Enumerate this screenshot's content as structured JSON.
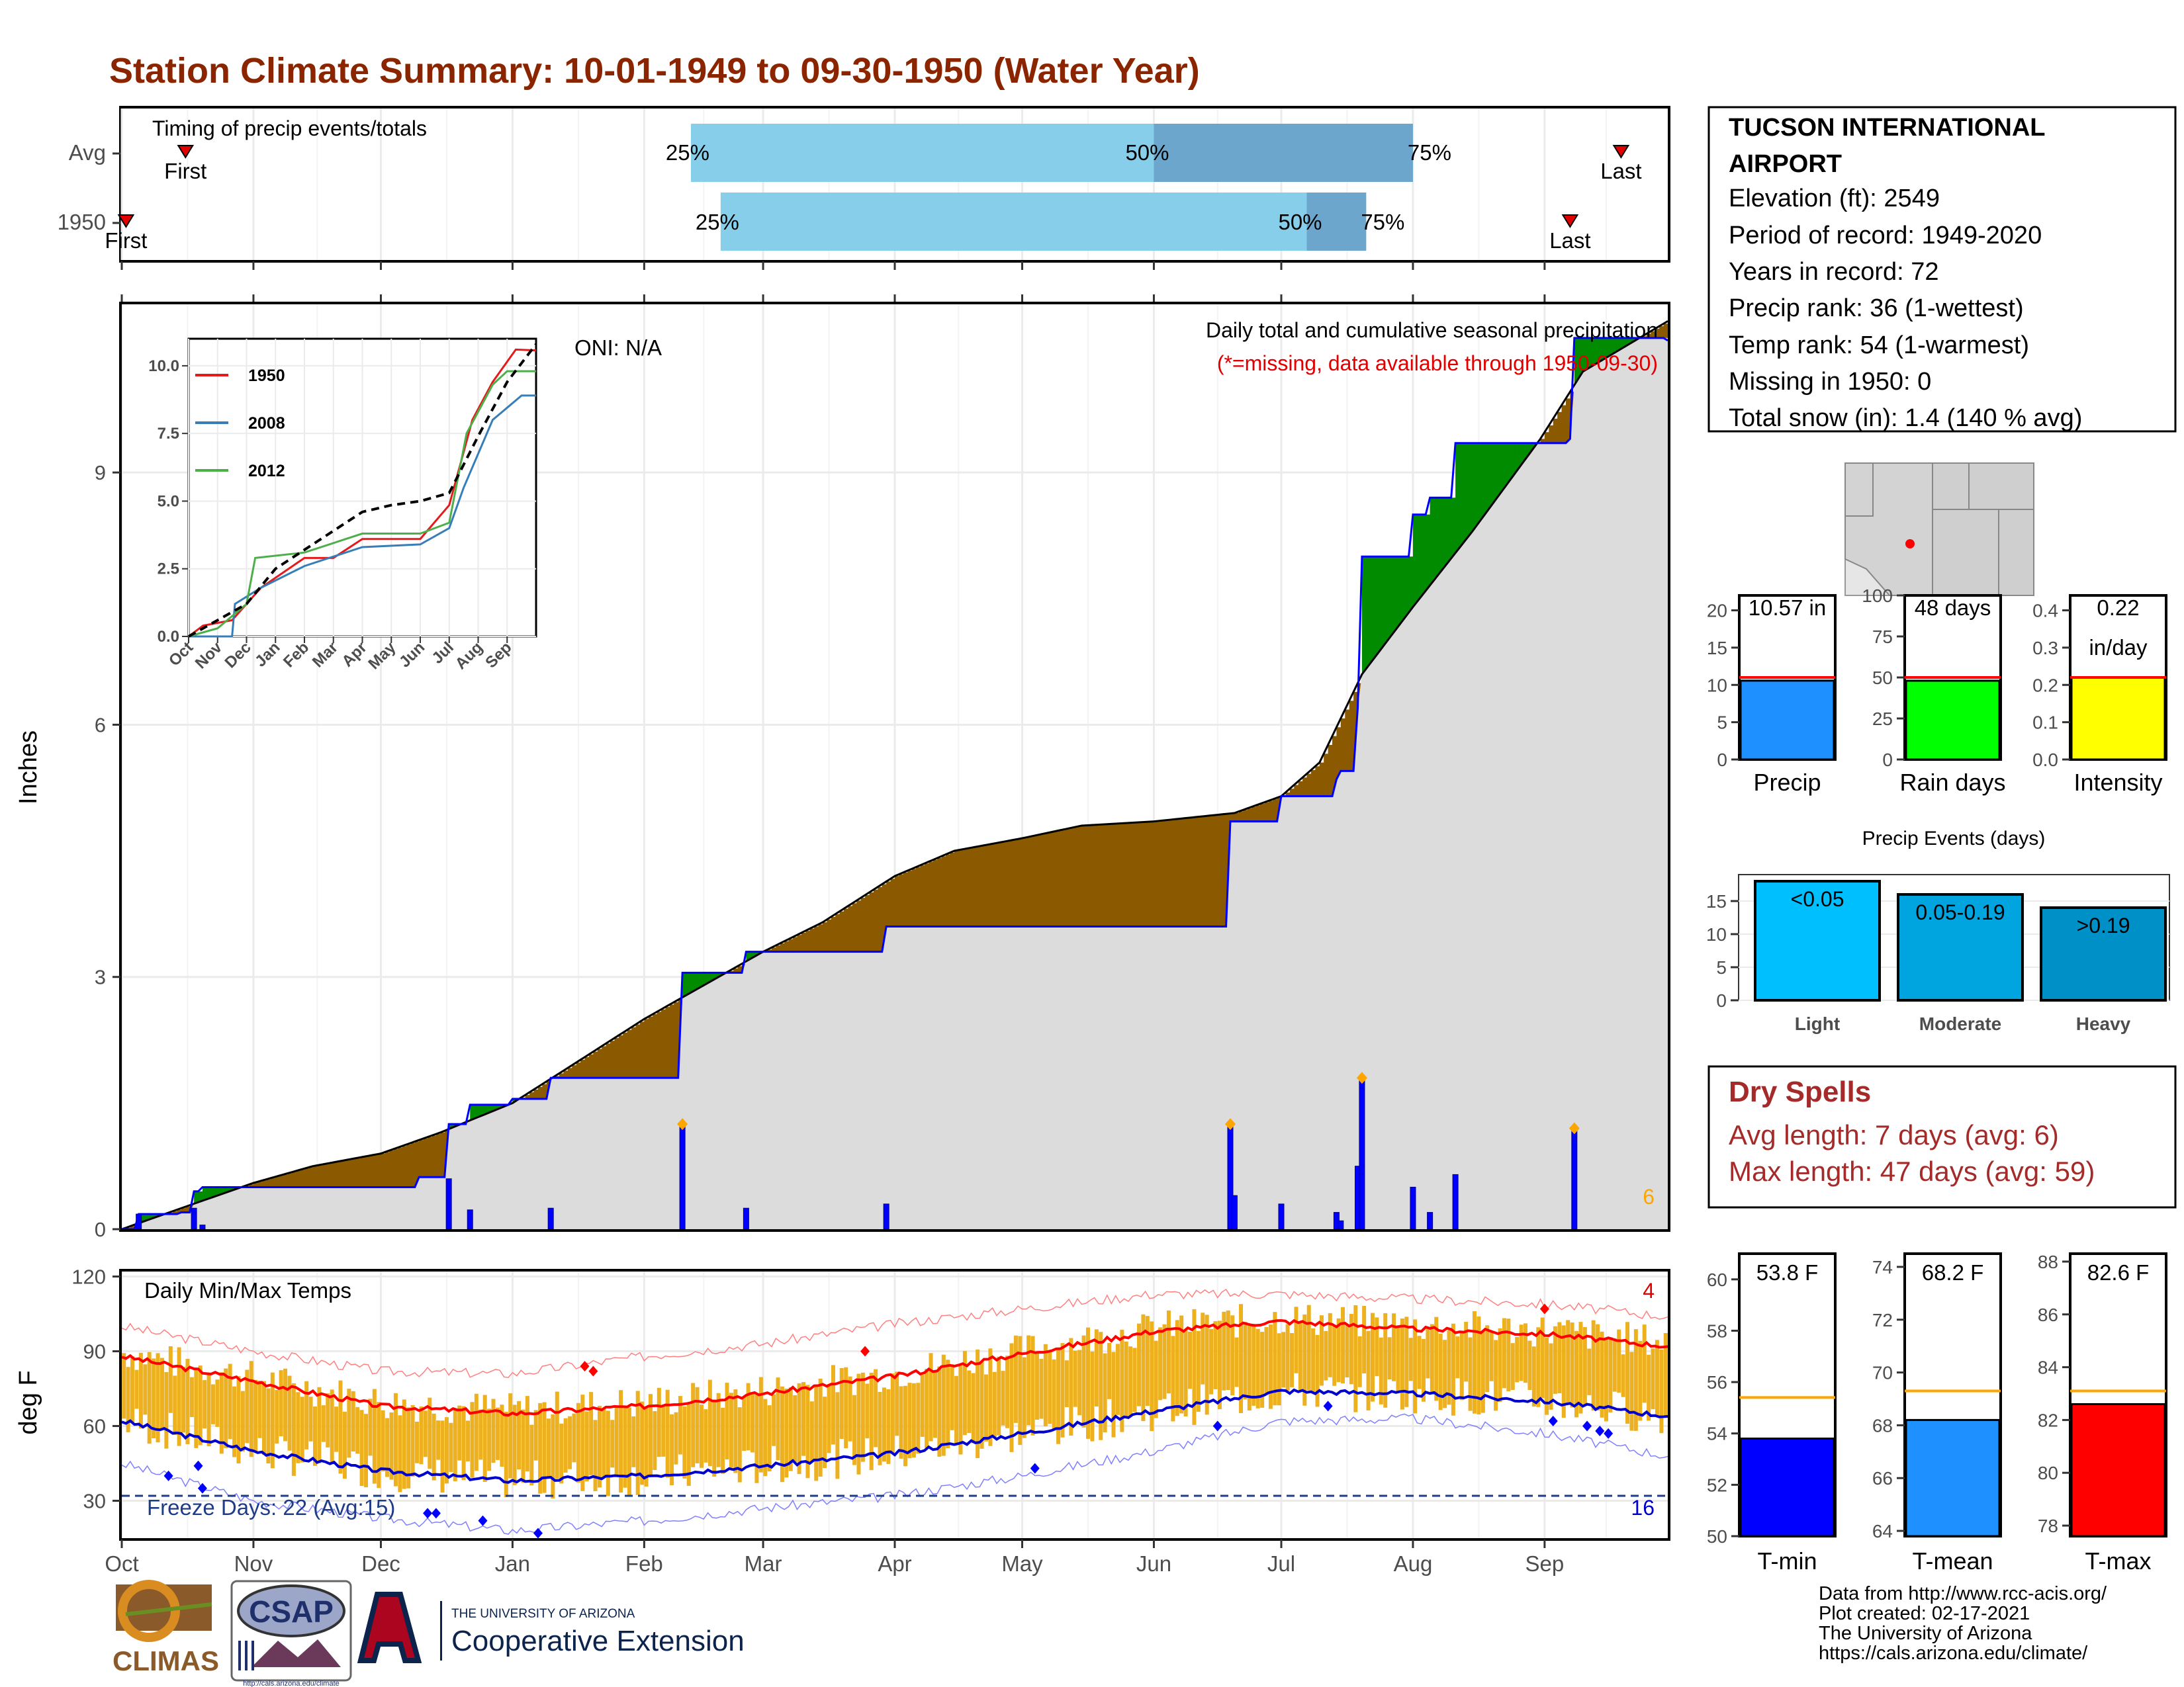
{
  "title": "Station Climate Summary: 10-01-1949 to 09-30-1950 (Water Year)",
  "colors": {
    "title": "#8B2500",
    "accumulated_surplus": "#8B5A00",
    "deficit_green": "#008B00",
    "normal_fill": "#DCDCDC",
    "precip_bars": "#0000FF",
    "tmax_line": "#FF0000",
    "tmin_line": "#0000CD",
    "temp_range_fill": "#EDB120",
    "timing_light": "#87CEEB",
    "timing_dark": "#6CA6CD"
  },
  "timing": {
    "label": "Timing of precip events/totals",
    "rows": [
      {
        "name": "Avg",
        "first_label": "First",
        "last_label": "Last",
        "first_date": "1949-10-16",
        "last_date": "1950-09-19",
        "p25_label": "25%",
        "p50_label": "50%",
        "p75_label": "75%",
        "p25_date": "1950-02-12",
        "p50_date": "1950-06-01",
        "p75_date": "1950-08-01"
      },
      {
        "name": "1950",
        "first_label": "First",
        "last_label": "Last",
        "first_date": "1949-10-02",
        "last_date": "1950-09-07",
        "p25_label": "25%",
        "p50_label": "50%",
        "p75_label": "75%",
        "p25_date": "1950-02-19",
        "p50_date": "1950-07-07",
        "p75_date": "1950-07-21"
      }
    ]
  },
  "precip": {
    "ylabel": "Inches",
    "yticks": [
      "0",
      "3",
      "6",
      "9"
    ],
    "ylim": [
      0,
      11.0
    ],
    "annotation_title": "Daily total and cumulative seasonal precipitation",
    "annotation_missing": "(*=missing, data available through 1950-09-30)",
    "oni": "ONI: N/A",
    "corner_count": "6",
    "chart_data": {
      "type": "area",
      "normal_cumulative": [
        [
          "1949-10-01",
          0.0
        ],
        [
          "1949-10-15",
          0.25
        ],
        [
          "1949-11-01",
          0.55
        ],
        [
          "1949-11-15",
          0.75
        ],
        [
          "1949-12-01",
          0.9
        ],
        [
          "1949-12-15",
          1.15
        ],
        [
          "1950-01-01",
          1.5
        ],
        [
          "1950-01-15",
          1.95
        ],
        [
          "1950-02-01",
          2.5
        ],
        [
          "1950-02-15",
          2.9
        ],
        [
          "1950-03-01",
          3.3
        ],
        [
          "1950-03-15",
          3.65
        ],
        [
          "1950-04-01",
          4.2
        ],
        [
          "1950-04-15",
          4.5
        ],
        [
          "1950-05-01",
          4.65
        ],
        [
          "1950-05-15",
          4.8
        ],
        [
          "1950-06-01",
          4.85
        ],
        [
          "1950-06-20",
          4.95
        ],
        [
          "1950-07-01",
          5.15
        ],
        [
          "1950-07-10",
          5.55
        ],
        [
          "1950-07-20",
          6.6
        ],
        [
          "1950-08-01",
          7.4
        ],
        [
          "1950-08-15",
          8.3
        ],
        [
          "1950-08-31",
          9.4
        ],
        [
          "1950-09-10",
          10.2
        ],
        [
          "1950-09-30",
          10.8
        ]
      ],
      "observed_cumulative": [
        [
          "1949-10-01",
          0.0
        ],
        [
          "1949-10-05",
          0.18
        ],
        [
          "1949-10-15",
          0.2
        ],
        [
          "1949-10-18",
          0.45
        ],
        [
          "1949-10-20",
          0.5
        ],
        [
          "1949-12-10",
          0.62
        ],
        [
          "1949-12-17",
          1.25
        ],
        [
          "1949-12-22",
          1.48
        ],
        [
          "1950-01-01",
          1.55
        ],
        [
          "1950-01-10",
          1.8
        ],
        [
          "1950-02-09",
          1.8
        ],
        [
          "1950-02-10",
          3.05
        ],
        [
          "1950-02-25",
          3.3
        ],
        [
          "1950-03-05",
          3.3
        ],
        [
          "1950-03-30",
          3.6
        ],
        [
          "1950-06-18",
          3.6
        ],
        [
          "1950-06-19",
          4.85
        ],
        [
          "1950-06-30",
          4.85
        ],
        [
          "1950-07-01",
          5.15
        ],
        [
          "1950-07-14",
          5.35
        ],
        [
          "1950-07-15",
          5.45
        ],
        [
          "1950-07-19",
          6.2
        ],
        [
          "1950-07-20",
          8.0
        ],
        [
          "1950-07-31",
          8.0
        ],
        [
          "1950-08-01",
          8.5
        ],
        [
          "1950-08-05",
          8.7
        ],
        [
          "1950-08-11",
          9.35
        ],
        [
          "1950-08-31",
          9.35
        ],
        [
          "1950-09-07",
          9.4
        ],
        [
          "1950-09-08",
          10.6
        ],
        [
          "1950-09-20",
          10.6
        ],
        [
          "1950-09-30",
          10.57
        ]
      ],
      "daily_bars": [
        [
          "1949-10-05",
          0.18
        ],
        [
          "1949-10-18",
          0.25
        ],
        [
          "1949-10-20",
          0.05
        ],
        [
          "1949-12-17",
          0.6
        ],
        [
          "1949-12-22",
          0.23
        ],
        [
          "1950-01-10",
          0.25
        ],
        [
          "1950-02-10",
          1.25
        ],
        [
          "1950-02-25",
          0.25
        ],
        [
          "1950-03-30",
          0.3
        ],
        [
          "1950-06-19",
          1.25
        ],
        [
          "1950-06-20",
          0.4
        ],
        [
          "1950-07-01",
          0.3
        ],
        [
          "1950-07-14",
          0.2
        ],
        [
          "1950-07-15",
          0.1
        ],
        [
          "1950-07-19",
          0.75
        ],
        [
          "1950-07-20",
          1.8
        ],
        [
          "1950-08-01",
          0.5
        ],
        [
          "1950-08-05",
          0.2
        ],
        [
          "1950-08-11",
          0.65
        ],
        [
          "1950-09-08",
          1.2
        ]
      ]
    }
  },
  "inset": {
    "ytick_labels": [
      "0.0",
      "2.5",
      "5.0",
      "7.5",
      "10.0"
    ],
    "xtick_labels": [
      "Oct",
      "Nov",
      "Dec",
      "Jan",
      "Feb",
      "Mar",
      "Apr",
      "May",
      "Jun",
      "Jul",
      "Aug",
      "Sep"
    ],
    "chart_data": {
      "type": "line",
      "x_months": [
        "Oct",
        "Nov",
        "Dec",
        "Jan",
        "Feb",
        "Mar",
        "Apr",
        "May",
        "Jun",
        "Jul",
        "Aug",
        "Sep"
      ],
      "series": [
        {
          "name": "1950",
          "color": "#E41A1C",
          "points": [
            [
              0,
              0
            ],
            [
              0.5,
              0.4
            ],
            [
              1.5,
              0.6
            ],
            [
              2.5,
              1.8
            ],
            [
              4,
              2.9
            ],
            [
              5,
              2.9
            ],
            [
              6,
              3.6
            ],
            [
              8,
              3.6
            ],
            [
              9,
              4.85
            ],
            [
              9.8,
              8.0
            ],
            [
              10.5,
              9.4
            ],
            [
              11.3,
              10.6
            ],
            [
              12,
              10.57
            ]
          ]
        },
        {
          "name": "2008",
          "color": "#377EB8",
          "points": [
            [
              0,
              0
            ],
            [
              1.5,
              0.0
            ],
            [
              1.6,
              1.2
            ],
            [
              2.5,
              1.8
            ],
            [
              4,
              2.6
            ],
            [
              6,
              3.3
            ],
            [
              8,
              3.4
            ],
            [
              9,
              4.0
            ],
            [
              9.5,
              5.5
            ],
            [
              10.5,
              8.0
            ],
            [
              11.5,
              8.9
            ],
            [
              12,
              8.9
            ]
          ]
        },
        {
          "name": "2012",
          "color": "#4DAF4A",
          "points": [
            [
              0,
              0
            ],
            [
              1,
              0.3
            ],
            [
              2,
              1.2
            ],
            [
              2.3,
              2.9
            ],
            [
              4,
              3.1
            ],
            [
              6,
              3.8
            ],
            [
              8,
              3.8
            ],
            [
              9,
              4.2
            ],
            [
              9.6,
              7.5
            ],
            [
              10.5,
              9.3
            ],
            [
              11,
              9.8
            ],
            [
              12,
              9.8
            ]
          ]
        },
        {
          "name": "",
          "color": "#000000",
          "dashed": true,
          "points": [
            [
              0,
              0
            ],
            [
              1,
              0.6
            ],
            [
              2,
              1.2
            ],
            [
              3,
              2.5
            ],
            [
              4,
              3.2
            ],
            [
              5,
              3.9
            ],
            [
              6,
              4.6
            ],
            [
              7,
              4.85
            ],
            [
              8,
              5.0
            ],
            [
              9,
              5.3
            ],
            [
              10,
              7.4
            ],
            [
              11,
              9.4
            ],
            [
              12,
              10.8
            ]
          ]
        }
      ]
    }
  },
  "temps": {
    "label": "Daily Min/Max Temps",
    "ylabel": "deg F",
    "yticks": [
      "30",
      "60",
      "90",
      "120"
    ],
    "ylim": [
      15,
      122
    ],
    "freeze_label": "Freeze Days: 22 (Avg:15)",
    "corner_max_count": "4",
    "corner_min_count": "16",
    "chart_data": {
      "type": "area",
      "normal_max": [
        [
          "1949-10-01",
          88
        ],
        [
          "1949-11-01",
          78
        ],
        [
          "1949-12-01",
          68
        ],
        [
          "1950-01-01",
          65
        ],
        [
          "1950-02-01",
          68
        ],
        [
          "1950-03-01",
          73
        ],
        [
          "1950-04-01",
          80
        ],
        [
          "1950-05-01",
          89
        ],
        [
          "1950-06-01",
          98
        ],
        [
          "1950-07-01",
          102
        ],
        [
          "1950-08-01",
          99
        ],
        [
          "1950-09-01",
          97
        ],
        [
          "1950-09-30",
          92
        ]
      ],
      "normal_min": [
        [
          "1949-10-01",
          62
        ],
        [
          "1949-11-01",
          50
        ],
        [
          "1949-12-01",
          42
        ],
        [
          "1950-01-01",
          38
        ],
        [
          "1950-02-01",
          40
        ],
        [
          "1950-03-01",
          44
        ],
        [
          "1950-04-01",
          49
        ],
        [
          "1950-05-01",
          57
        ],
        [
          "1950-06-01",
          66
        ],
        [
          "1950-07-01",
          74
        ],
        [
          "1950-08-01",
          73
        ],
        [
          "1950-09-01",
          70
        ],
        [
          "1950-09-30",
          64
        ]
      ],
      "record_max": [
        [
          "1949-10-01",
          100
        ],
        [
          "1949-11-01",
          90
        ],
        [
          "1949-12-01",
          82
        ],
        [
          "1950-01-01",
          81
        ],
        [
          "1950-02-01",
          88
        ],
        [
          "1950-03-01",
          93
        ],
        [
          "1950-04-01",
          101
        ],
        [
          "1950-05-01",
          107
        ],
        [
          "1950-06-01",
          113
        ],
        [
          "1950-07-01",
          113
        ],
        [
          "1950-08-01",
          111
        ],
        [
          "1950-09-01",
          109
        ],
        [
          "1950-09-30",
          104
        ]
      ],
      "record_min": [
        [
          "1949-10-01",
          45
        ],
        [
          "1949-11-01",
          30
        ],
        [
          "1949-12-01",
          23
        ],
        [
          "1950-01-01",
          18
        ],
        [
          "1950-02-01",
          22
        ],
        [
          "1950-03-01",
          27
        ],
        [
          "1950-04-01",
          32
        ],
        [
          "1950-05-01",
          40
        ],
        [
          "1950-06-01",
          50
        ],
        [
          "1950-07-01",
          62
        ],
        [
          "1950-08-01",
          63
        ],
        [
          "1950-09-01",
          57
        ],
        [
          "1950-09-30",
          48
        ]
      ]
    }
  },
  "xaxis": {
    "start": "1949-10-01",
    "end": "1950-09-30",
    "month_labels": [
      "Oct",
      "Nov",
      "Dec",
      "Jan",
      "Feb",
      "Mar",
      "Apr",
      "May",
      "Jun",
      "Jul",
      "Aug",
      "Sep"
    ]
  },
  "station": {
    "name_line1": "TUCSON INTERNATIONAL",
    "name_line2": "AIRPORT",
    "elevation": "Elevation (ft): 2549",
    "period": "Period of record: 1949-2020",
    "years": "Years in record: 72",
    "precip_rank": "Precip rank: 36 (1-wettest)",
    "temp_rank": "Temp rank: 54 (1-warmest)",
    "missing": "Missing in 1950: 0",
    "snow": "Total snow (in): 1.4 (140 % avg)"
  },
  "summary_bars": [
    {
      "label": "Precip",
      "value_text": "10.57 in",
      "value": 10.57,
      "avg": 11.0,
      "ylim": [
        0,
        22
      ],
      "ticks": [
        "0",
        "5",
        "10",
        "15",
        "20"
      ],
      "color": "#1E90FF"
    },
    {
      "label": "Rain days",
      "value_text": "48 days",
      "value": 48,
      "avg": 50,
      "ylim": [
        0,
        100
      ],
      "ticks": [
        "0",
        "25",
        "50",
        "75",
        "100"
      ],
      "color": "#00FF00"
    },
    {
      "label": "Intensity",
      "value_text": "0.22",
      "value_text2": "in/day",
      "value": 0.22,
      "avg": 0.22,
      "ylim": [
        0,
        0.44
      ],
      "ticks": [
        "0.0",
        "0.1",
        "0.2",
        "0.3",
        "0.4"
      ],
      "color": "#FFFF00"
    }
  ],
  "events": {
    "title": "Precip Events (days)",
    "ticks": [
      "0",
      "5",
      "10",
      "15"
    ],
    "ylim": [
      0,
      19
    ],
    "chart_data": {
      "type": "bar",
      "categories": [
        "Light",
        "Moderate",
        "Heavy"
      ],
      "values": [
        18,
        16,
        14
      ],
      "labels": [
        "<0.05",
        "0.05-0.19",
        ">0.19"
      ],
      "colors": [
        "#00BFFF",
        "#00A5E0",
        "#0090C8"
      ]
    }
  },
  "dry_spells": {
    "title": "Dry Spells",
    "avg": "Avg length: 7 days (avg: 6)",
    "max": "Max length: 47 days (avg: 59)"
  },
  "temp_bars": [
    {
      "label": "T-min",
      "value_text": "53.8 F",
      "value": 53.8,
      "avg": 55.4,
      "ylim": [
        50,
        61
      ],
      "ticks": [
        "50",
        "52",
        "54",
        "56",
        "58",
        "60"
      ],
      "color": "#0000FF"
    },
    {
      "label": "T-mean",
      "value_text": "68.2 F",
      "value": 68.2,
      "avg": 69.3,
      "ylim": [
        63.8,
        74.5
      ],
      "ticks": [
        "64",
        "66",
        "68",
        "70",
        "72",
        "74"
      ],
      "color": "#1E90FF"
    },
    {
      "label": "T-max",
      "value_text": "82.6 F",
      "value": 82.6,
      "avg": 83.1,
      "ylim": [
        77.6,
        88.3
      ],
      "ticks": [
        "78",
        "80",
        "82",
        "84",
        "86",
        "88"
      ],
      "color": "#FF0000"
    }
  ],
  "credits": {
    "line1": "Data from http://www.rcc-acis.org/",
    "line2": "Plot created: 02-17-2021",
    "line3": "The University of Arizona",
    "line4": "https://cals.arizona.edu/climate/"
  },
  "logos": {
    "climas": "CLIMAS",
    "csap": "CSAP",
    "csap_url": "http://cals.arizona.edu/climate",
    "ua_small": "THE UNIVERSITY OF ARIZONA",
    "ua_big": "Cooperative Extension"
  }
}
